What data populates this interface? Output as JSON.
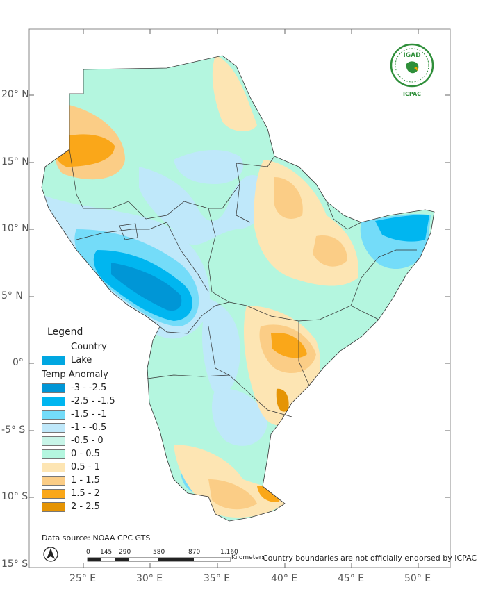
{
  "map": {
    "latitude_labels": [
      "20° N",
      "15° N",
      "10° N",
      "5° N",
      "0°",
      "-5° S",
      "10° S",
      "15° S"
    ],
    "longitude_labels": [
      "25° E",
      "30° E",
      "35° E",
      "40° E",
      "45° E",
      "50° E"
    ]
  },
  "legend": {
    "title": "Legend",
    "country_label": "Country",
    "lake_label": "Lake",
    "lake_color": "#00a7e1",
    "temp_title": "Temp  Anomaly",
    "classes": [
      {
        "label": "-3 - -2.5",
        "color": "#0096d6"
      },
      {
        "label": "-2.5 - -1.5",
        "color": "#00b6f0"
      },
      {
        "label": "-1.5 - -1",
        "color": "#74dcf9"
      },
      {
        "label": "-1 - -0.5",
        "color": "#bfe8fa"
      },
      {
        "label": "-0.5 - 0",
        "color": "#c8f5e8"
      },
      {
        "label": "0 - 0.5",
        "color": "#b4f6df"
      },
      {
        "label": "0.5 - 1",
        "color": "#fde5b3"
      },
      {
        "label": "1 - 1.5",
        "color": "#fbcd86"
      },
      {
        "label": "1.5 - 2",
        "color": "#faa719"
      },
      {
        "label": "2 - 2.5",
        "color": "#e59404"
      }
    ]
  },
  "footer": {
    "source": "Data source: NOAA  CPC GTS",
    "scale_ticks": [
      "0",
      "145",
      "290",
      "580",
      "870",
      "1,160"
    ],
    "scale_unit": "Kilometers",
    "disclaimer": "Country boundaries are not officially endorsed by ICPAC"
  },
  "logo": {
    "name": "IGAD",
    "subtitle": "ICPAC"
  }
}
